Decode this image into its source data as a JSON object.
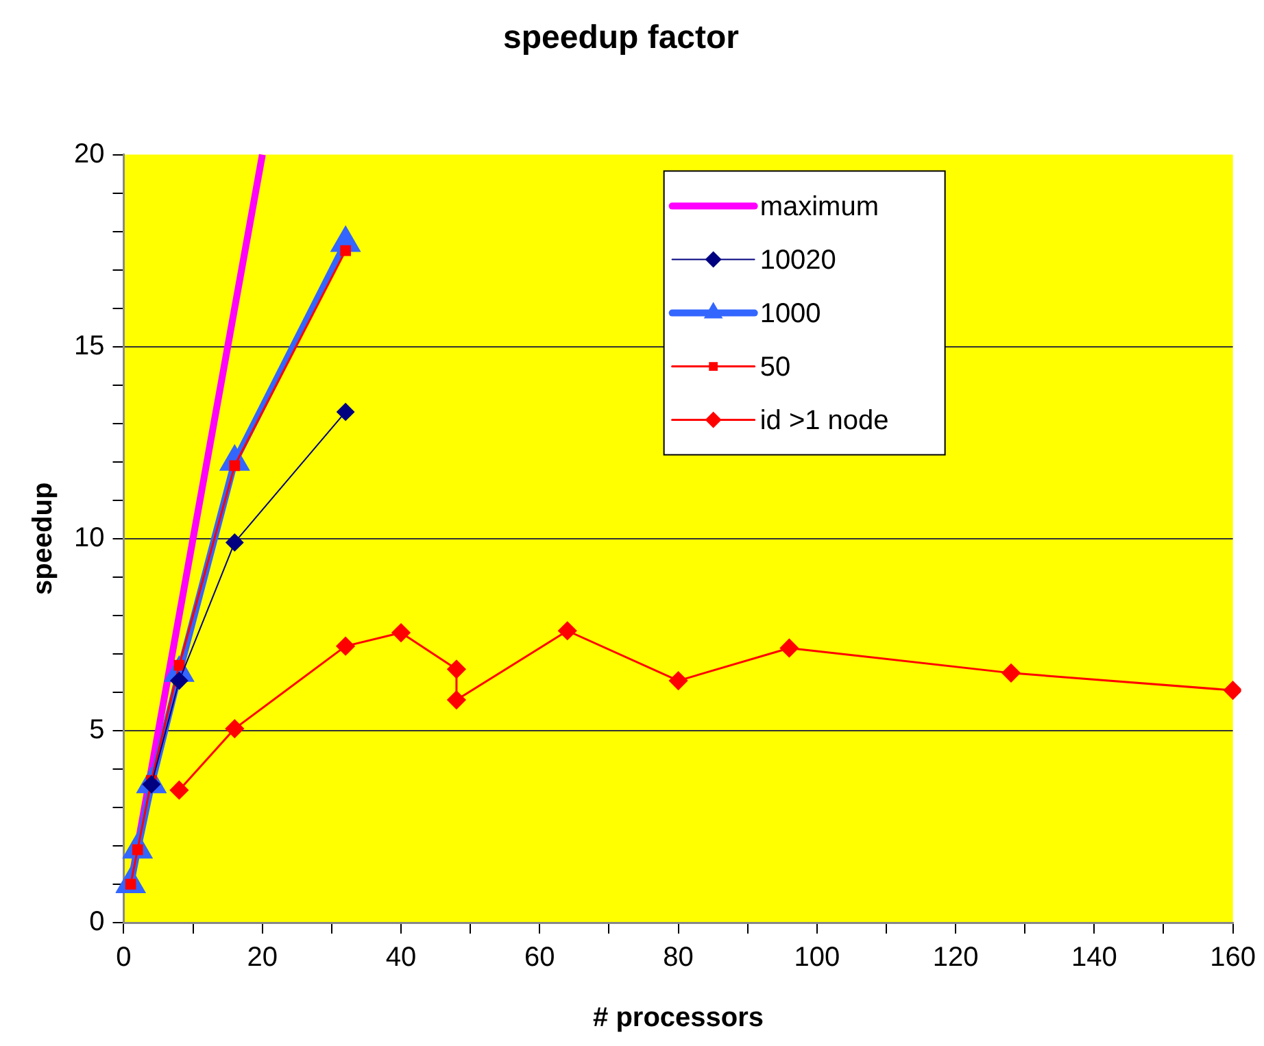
{
  "chart_data": {
    "type": "line",
    "title": "speedup factor",
    "xlabel": "# processors",
    "ylabel": "speedup",
    "xlim": [
      0,
      160
    ],
    "ylim": [
      0,
      20
    ],
    "xticks": [
      0,
      {
        "value": 10,
        "label": null
      },
      20,
      {
        "value": 30,
        "label": null
      },
      40,
      {
        "value": 50,
        "label": null
      },
      60,
      {
        "value": 70,
        "label": null
      },
      80,
      {
        "value": 90,
        "label": null
      },
      100,
      {
        "value": 110,
        "label": null
      },
      120,
      {
        "value": 130,
        "label": null
      },
      140,
      {
        "value": 150,
        "label": null
      },
      160
    ],
    "yticks": [
      0,
      {
        "value": 1,
        "label": null
      },
      {
        "value": 2,
        "label": null
      },
      {
        "value": 3,
        "label": null
      },
      {
        "value": 4,
        "label": null
      },
      5,
      {
        "value": 6,
        "label": null
      },
      {
        "value": 7,
        "label": null
      },
      {
        "value": 8,
        "label": null
      },
      {
        "value": 9,
        "label": null
      },
      10,
      {
        "value": 11,
        "label": null
      },
      {
        "value": 12,
        "label": null
      },
      {
        "value": 13,
        "label": null
      },
      {
        "value": 14,
        "label": null
      },
      15,
      {
        "value": 16,
        "label": null
      },
      {
        "value": 17,
        "label": null
      },
      {
        "value": 18,
        "label": null
      },
      {
        "value": 19,
        "label": null
      },
      20
    ],
    "grid": "y",
    "legend": "top right",
    "series": [
      {
        "name": "maximum",
        "color": "#ff00ff",
        "marker": "none",
        "x": [
          1,
          2,
          4,
          8,
          16,
          20
        ],
        "values": [
          1,
          2,
          4,
          8,
          16,
          20
        ]
      },
      {
        "name": "10020",
        "color": "#000080",
        "marker": "diamond",
        "x": [
          4,
          8,
          16,
          32
        ],
        "values": [
          3.6,
          6.3,
          9.9,
          13.3
        ]
      },
      {
        "name": "1000",
        "color": "#3366ff",
        "marker": "triangle",
        "x": [
          1,
          2,
          4,
          8,
          16,
          32
        ],
        "values": [
          1,
          1.9,
          3.6,
          6.5,
          12,
          17.7
        ]
      },
      {
        "name": "50",
        "color": "#ff0000",
        "marker": "square",
        "x": [
          1,
          2,
          4,
          8,
          16,
          32
        ],
        "values": [
          1,
          1.9,
          3.7,
          6.7,
          11.9,
          17.5
        ]
      },
      {
        "name": "id >1 node",
        "color": "#ff0000",
        "marker": "diamond",
        "x": [
          8,
          16,
          32,
          40,
          48,
          48,
          64,
          80,
          96,
          128,
          160
        ],
        "values": [
          3.45,
          5.05,
          7.2,
          7.55,
          6.6,
          5.8,
          7.6,
          6.3,
          7.15,
          6.5,
          6.05
        ]
      }
    ]
  }
}
